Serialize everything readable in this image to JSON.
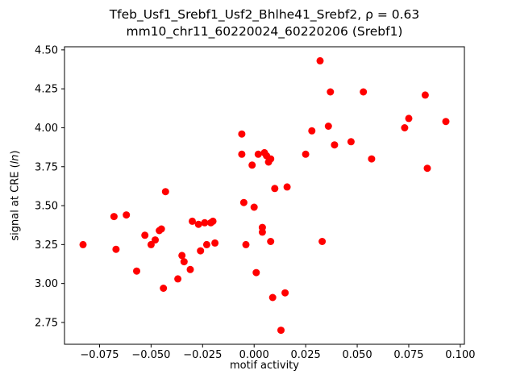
{
  "chart_data": {
    "type": "scatter",
    "title_line1": "Tfeb_Usf1_Srebf1_Usf2_Bhlhe41_Srebf2, ρ = 0.63",
    "title_line2": "mm10_chr11_60220024_60220206 (Srebf1)",
    "xlabel": "motif activity",
    "ylabel_prefix": "signal at CRE (",
    "ylabel_italic": "ln",
    "ylabel_suffix": ")",
    "marker_color": "#ff0000",
    "grid": false,
    "legend": null,
    "xlim": [
      -0.092,
      0.102
    ],
    "ylim": [
      2.61,
      4.52
    ],
    "xticks": [
      -0.075,
      -0.05,
      -0.025,
      0.0,
      0.025,
      0.05,
      0.075,
      0.1
    ],
    "xtick_labels": [
      "−0.075",
      "−0.050",
      "−0.025",
      "0.000",
      "0.025",
      "0.050",
      "0.075",
      "0.100"
    ],
    "yticks": [
      2.75,
      3.0,
      3.25,
      3.5,
      3.75,
      4.0,
      4.25,
      4.5
    ],
    "ytick_labels": [
      "2.75",
      "3.00",
      "3.25",
      "3.50",
      "3.75",
      "4.00",
      "4.25",
      "4.50"
    ],
    "points": [
      [
        -0.083,
        3.25
      ],
      [
        -0.068,
        3.43
      ],
      [
        -0.067,
        3.22
      ],
      [
        -0.062,
        3.44
      ],
      [
        -0.057,
        3.08
      ],
      [
        -0.053,
        3.31
      ],
      [
        -0.05,
        3.25
      ],
      [
        -0.048,
        3.28
      ],
      [
        -0.046,
        3.34
      ],
      [
        -0.045,
        3.35
      ],
      [
        -0.044,
        2.97
      ],
      [
        -0.043,
        3.59
      ],
      [
        -0.037,
        3.03
      ],
      [
        -0.035,
        3.18
      ],
      [
        -0.034,
        3.14
      ],
      [
        -0.031,
        3.09
      ],
      [
        -0.03,
        3.4
      ],
      [
        -0.027,
        3.38
      ],
      [
        -0.026,
        3.21
      ],
      [
        -0.024,
        3.39
      ],
      [
        -0.023,
        3.25
      ],
      [
        -0.021,
        3.39
      ],
      [
        -0.02,
        3.4
      ],
      [
        -0.019,
        3.26
      ],
      [
        -0.006,
        3.96
      ],
      [
        -0.006,
        3.83
      ],
      [
        -0.005,
        3.52
      ],
      [
        -0.004,
        3.25
      ],
      [
        -0.001,
        3.76
      ],
      [
        0.0,
        3.49
      ],
      [
        0.001,
        3.07
      ],
      [
        0.002,
        3.83
      ],
      [
        0.004,
        3.36
      ],
      [
        0.004,
        3.33
      ],
      [
        0.005,
        3.84
      ],
      [
        0.006,
        3.82
      ],
      [
        0.007,
        3.78
      ],
      [
        0.008,
        3.8
      ],
      [
        0.008,
        3.27
      ],
      [
        0.009,
        2.91
      ],
      [
        0.01,
        3.61
      ],
      [
        0.013,
        2.7
      ],
      [
        0.015,
        2.94
      ],
      [
        0.016,
        3.62
      ],
      [
        0.025,
        3.83
      ],
      [
        0.028,
        3.98
      ],
      [
        0.032,
        4.43
      ],
      [
        0.033,
        3.27
      ],
      [
        0.036,
        4.01
      ],
      [
        0.037,
        4.23
      ],
      [
        0.039,
        3.89
      ],
      [
        0.047,
        3.91
      ],
      [
        0.053,
        4.23
      ],
      [
        0.057,
        3.8
      ],
      [
        0.073,
        4.0
      ],
      [
        0.075,
        4.06
      ],
      [
        0.083,
        4.21
      ],
      [
        0.084,
        3.74
      ],
      [
        0.093,
        4.04
      ]
    ]
  }
}
